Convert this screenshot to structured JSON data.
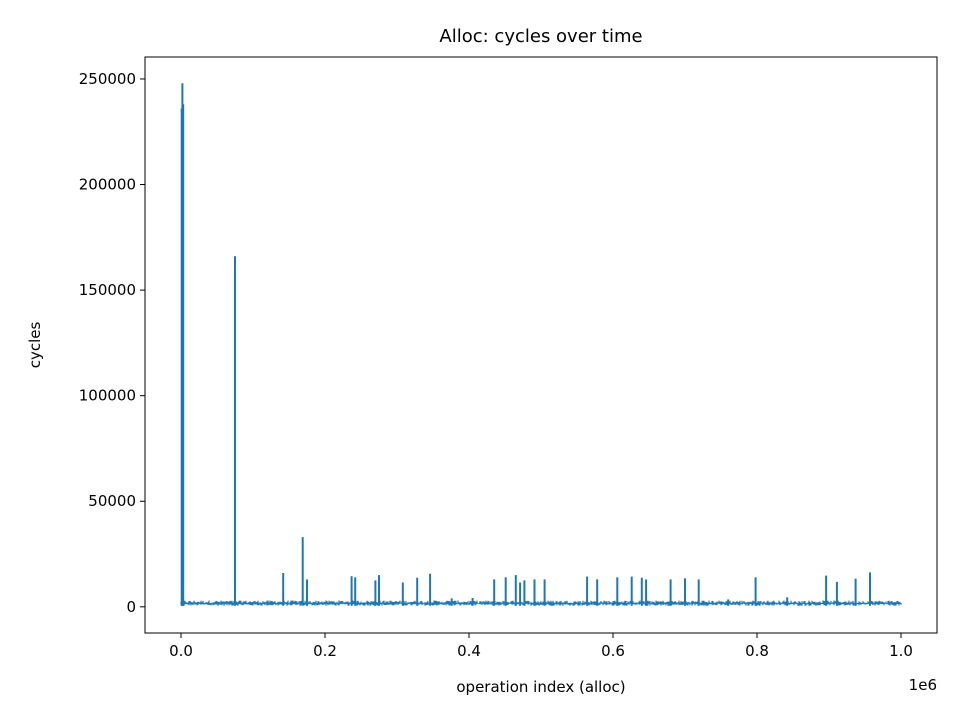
{
  "chart_data": {
    "type": "line",
    "title": "Alloc: cycles over time",
    "xlabel": "operation index (alloc)",
    "ylabel": "cycles",
    "x_offset_label": "1e6",
    "xlim": [
      -50000,
      1050000
    ],
    "ylim": [
      -12400,
      260400
    ],
    "x_ticks": [
      0,
      200000,
      400000,
      600000,
      800000,
      1000000
    ],
    "x_tick_labels": [
      "0.0",
      "0.2",
      "0.4",
      "0.6",
      "0.8",
      "1.0"
    ],
    "y_ticks": [
      0,
      50000,
      100000,
      150000,
      200000,
      250000
    ],
    "y_tick_labels": [
      "0",
      "50000",
      "100000",
      "150000",
      "200000",
      "250000"
    ],
    "grid": false,
    "color": "#1f77b4",
    "baseline_range": [
      500,
      3000
    ],
    "series": [
      {
        "points": [
          [
            0,
            500
          ],
          [
            1000,
            236000
          ],
          [
            1400,
            800
          ],
          [
            2000,
            248000
          ],
          [
            2500,
            600
          ],
          [
            3000,
            238000
          ],
          [
            3500,
            900
          ],
          [
            75000,
            166000
          ],
          [
            169000,
            33000
          ],
          [
            142000,
            16000
          ],
          [
            175000,
            13000
          ],
          [
            237000,
            14500
          ],
          [
            242000,
            14000
          ],
          [
            270000,
            12500
          ],
          [
            275000,
            15000
          ],
          [
            308000,
            11500
          ],
          [
            328000,
            13800
          ],
          [
            346000,
            15700
          ],
          [
            376000,
            4000
          ],
          [
            405000,
            4200
          ],
          [
            435000,
            13000
          ],
          [
            451000,
            14000
          ],
          [
            465000,
            15000
          ],
          [
            471000,
            11500
          ],
          [
            477000,
            12500
          ],
          [
            491000,
            13000
          ],
          [
            505000,
            13000
          ],
          [
            564000,
            14300
          ],
          [
            578000,
            13000
          ],
          [
            606000,
            14000
          ],
          [
            626000,
            14300
          ],
          [
            640000,
            13800
          ],
          [
            646000,
            13000
          ],
          [
            680000,
            13000
          ],
          [
            700000,
            13500
          ],
          [
            719000,
            13000
          ],
          [
            760000,
            3500
          ],
          [
            798000,
            14000
          ],
          [
            842000,
            4500
          ],
          [
            896000,
            14800
          ],
          [
            911000,
            11800
          ],
          [
            937000,
            13300
          ],
          [
            957000,
            16300
          ],
          [
            1000000,
            500
          ]
        ]
      }
    ]
  }
}
